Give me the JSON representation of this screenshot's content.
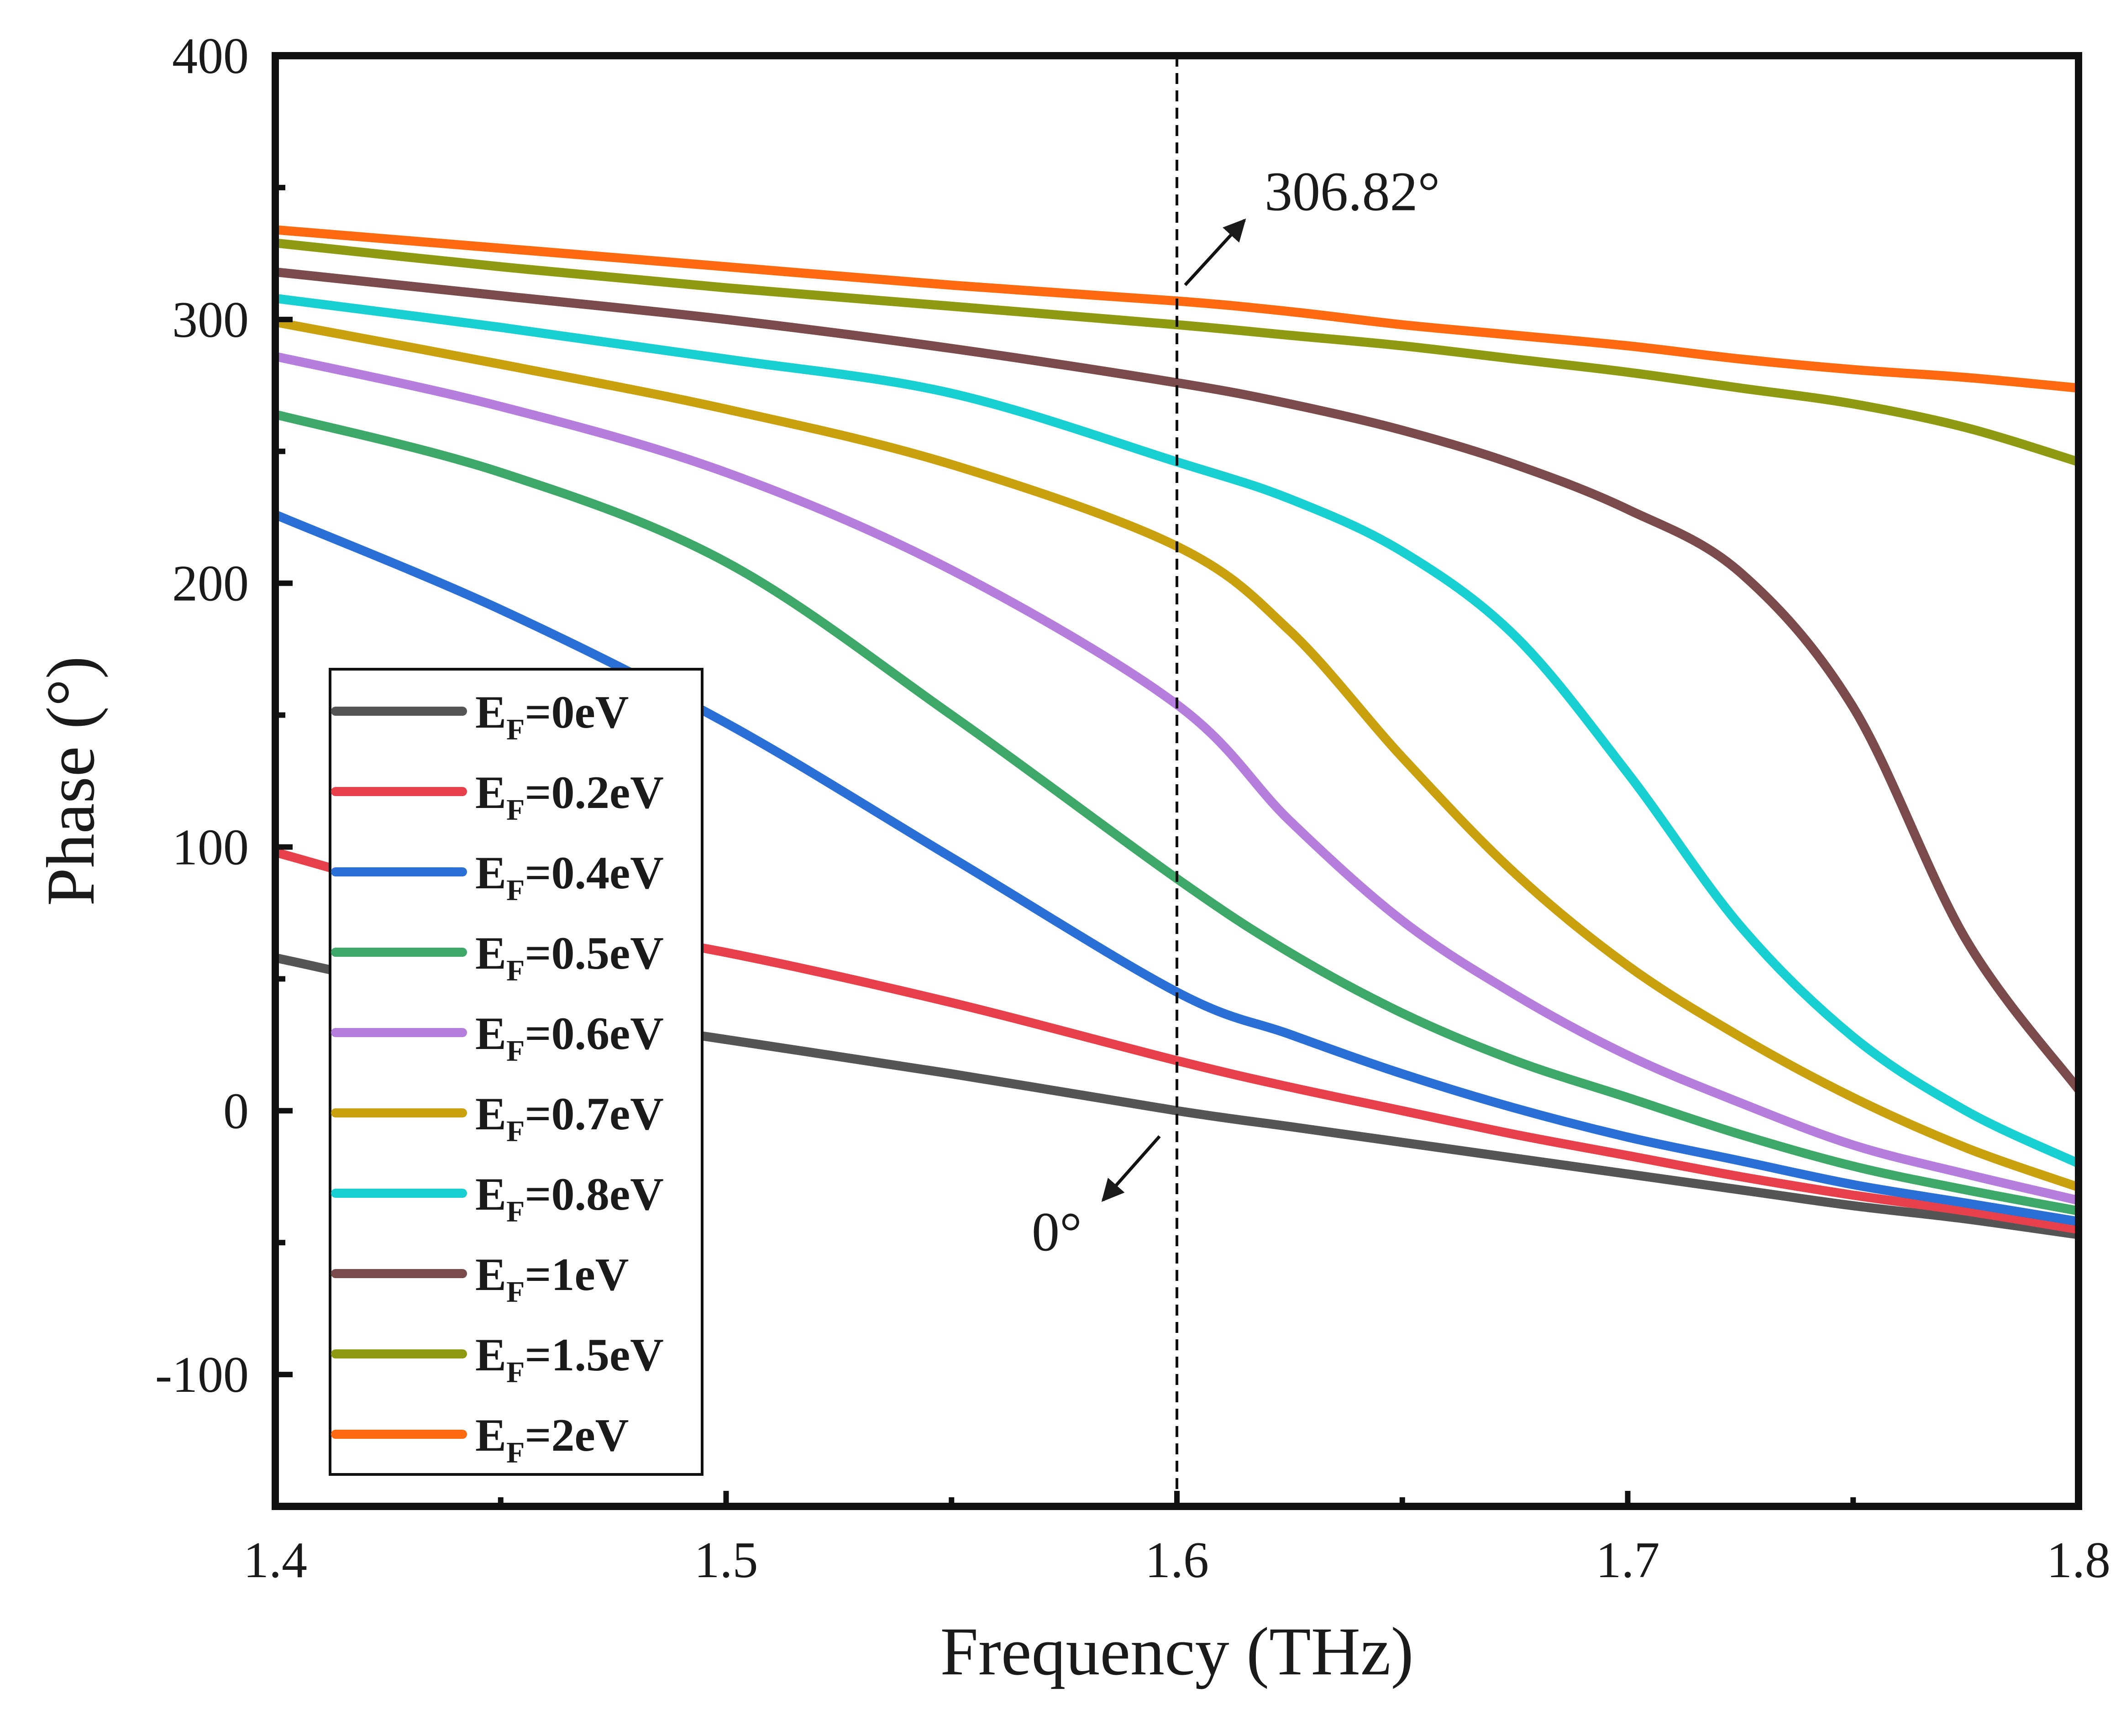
{
  "chart_data": {
    "type": "line",
    "title": "",
    "xlabel": "Frequency (THz)",
    "ylabel": "Phase (°)",
    "xlim": [
      1.4,
      1.8
    ],
    "ylim": [
      -150,
      400
    ],
    "x_ticks": [
      1.4,
      1.5,
      1.6,
      1.7,
      1.8
    ],
    "x_tick_labels": [
      "1.4",
      "1.5",
      "1.6",
      "1.7",
      "1.8"
    ],
    "y_ticks": [
      -100,
      0,
      100,
      200,
      300,
      400
    ],
    "y_tick_labels": [
      "-100",
      "0",
      "100",
      "200",
      "300",
      "400"
    ],
    "grid": false,
    "legend_position": "lower-left",
    "x": [
      1.4,
      1.45,
      1.5,
      1.55,
      1.6,
      1.625,
      1.65,
      1.675,
      1.7,
      1.725,
      1.75,
      1.775,
      1.8
    ],
    "series": [
      {
        "name": "EF=0eV",
        "legend_main": "E",
        "legend_sub": "F",
        "legend_rest": "=0eV",
        "color": "#555555",
        "values": [
          58,
          40,
          27,
          14,
          0,
          -6,
          -12,
          -18,
          -24,
          -30,
          -36,
          -41,
          -47
        ]
      },
      {
        "name": "EF=0.2eV",
        "legend_main": "E",
        "legend_sub": "F",
        "legend_rest": "=0.2eV",
        "color": "#e8404a",
        "values": [
          98,
          75,
          60,
          41,
          19,
          9,
          0,
          -9,
          -17,
          -25,
          -32,
          -38,
          -45
        ]
      },
      {
        "name": "EF=0.4eV",
        "legend_main": "E",
        "legend_sub": "F",
        "legend_rest": "=0.4eV",
        "color": "#2a6fd6",
        "values": [
          226,
          190,
          147,
          96,
          45,
          29,
          14,
          1,
          -10,
          -19,
          -28,
          -35,
          -42
        ]
      },
      {
        "name": "EF=0.5eV",
        "legend_main": "E",
        "legend_sub": "F",
        "legend_rest": "=0.5eV",
        "color": "#3da867",
        "values": [
          264,
          242,
          208,
          150,
          88,
          60,
          37,
          19,
          5,
          -9,
          -21,
          -30,
          -38
        ]
      },
      {
        "name": "EF=0.6eV",
        "legend_main": "E",
        "legend_sub": "F",
        "legend_rest": "=0.6eV",
        "color": "#b57edc",
        "values": [
          286,
          267,
          242,
          205,
          154,
          110,
          72,
          44,
          21,
          3,
          -13,
          -24,
          -34
        ]
      },
      {
        "name": "EF=0.7eV",
        "legend_main": "E",
        "legend_sub": "F",
        "legend_rest": "=0.7eV",
        "color": "#c9a00e",
        "values": [
          299,
          283,
          266,
          245,
          214,
          182,
          134,
          90,
          55,
          28,
          5,
          -14,
          -29
        ]
      },
      {
        "name": "EF=0.8eV",
        "legend_main": "E",
        "legend_sub": "F",
        "legend_rest": "=0.8eV",
        "color": "#18cfd2",
        "values": [
          308,
          297,
          285,
          272,
          246,
          232,
          212,
          180,
          128,
          70,
          28,
          0,
          -20
        ]
      },
      {
        "name": "EF=1eV",
        "legend_main": "E",
        "legend_sub": "F",
        "legend_rest": "=1eV",
        "color": "#7b4a4a",
        "values": [
          318,
          309,
          300,
          289,
          276,
          268,
          258,
          245,
          228,
          204,
          153,
          65,
          8
        ]
      },
      {
        "name": "EF=1.5eV",
        "legend_main": "E",
        "legend_sub": "F",
        "legend_rest": "=1.5eV",
        "color": "#8e9a12",
        "values": [
          329,
          320,
          312,
          305,
          298,
          294,
          290,
          285,
          280,
          274,
          268,
          259,
          246
        ]
      },
      {
        "name": "EF=2eV",
        "legend_main": "E",
        "legend_sub": "F",
        "legend_rest": "=2eV",
        "color": "#ff6a10",
        "values": [
          334,
          327,
          320,
          313,
          307,
          303,
          298,
          294,
          290,
          285,
          281,
          278,
          274
        ]
      }
    ],
    "reference_line": {
      "x": 1.6,
      "style": "dashed"
    },
    "annotations": [
      {
        "text": "306.82°",
        "x": 1.6,
        "y": 306.82,
        "direction": "up-right"
      },
      {
        "text": "0°",
        "x": 1.6,
        "y": 0,
        "direction": "down-left"
      }
    ]
  }
}
